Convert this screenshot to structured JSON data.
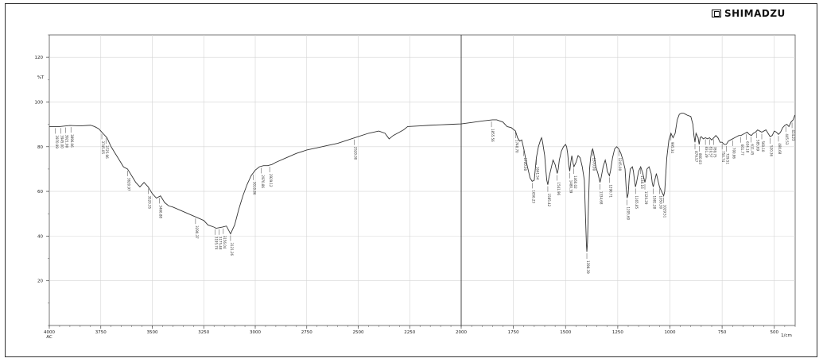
{
  "brand": {
    "name": "SHIMADZU",
    "icon": "shimadzu-logo-icon"
  },
  "chart_data": {
    "type": "line",
    "title": "",
    "ylabel": "%T",
    "xunit": "1/cm",
    "xlim": [
      4000,
      400
    ],
    "ylim": [
      0,
      130
    ],
    "grid": true,
    "xticks": [
      {
        "v": 4000,
        "label": "4000"
      },
      {
        "v": 3750,
        "label": "3750"
      },
      {
        "v": 3500,
        "label": "3500"
      },
      {
        "v": 3250,
        "label": "3250"
      },
      {
        "v": 3000,
        "label": "3000"
      },
      {
        "v": 2750,
        "label": "2750"
      },
      {
        "v": 2500,
        "label": "2500"
      },
      {
        "v": 2250,
        "label": "2250"
      },
      {
        "v": 2000,
        "label": "2000"
      },
      {
        "v": 1750,
        "label": "1750"
      },
      {
        "v": 1500,
        "label": "1500"
      },
      {
        "v": 1250,
        "label": "1250"
      },
      {
        "v": 1000,
        "label": "1000"
      },
      {
        "v": 750,
        "label": "750"
      },
      {
        "v": 500,
        "label": "500"
      }
    ],
    "x_start_sublabel": "AC",
    "yticks": [
      {
        "v": 20,
        "label": "20"
      },
      {
        "v": 40,
        "label": "40"
      },
      {
        "v": 60,
        "label": "60"
      },
      {
        "v": 80,
        "label": "80"
      },
      {
        "v": 100,
        "label": "100"
      },
      {
        "v": 120,
        "label": "120"
      }
    ],
    "series": [
      {
        "color": "#333333",
        "points": [
          [
            4000,
            89
          ],
          [
            3950,
            89
          ],
          [
            3900,
            89.5
          ],
          [
            3850,
            89.3
          ],
          [
            3800,
            89.6
          ],
          [
            3780,
            89
          ],
          [
            3760,
            88
          ],
          [
            3740,
            86
          ],
          [
            3720,
            84
          ],
          [
            3700,
            80
          ],
          [
            3680,
            77
          ],
          [
            3660,
            74
          ],
          [
            3640,
            71
          ],
          [
            3620,
            70
          ],
          [
            3600,
            67
          ],
          [
            3580,
            64
          ],
          [
            3560,
            62
          ],
          [
            3540,
            64
          ],
          [
            3520,
            62
          ],
          [
            3500,
            59
          ],
          [
            3480,
            57
          ],
          [
            3460,
            58
          ],
          [
            3440,
            55
          ],
          [
            3420,
            53.5
          ],
          [
            3400,
            53
          ],
          [
            3350,
            51
          ],
          [
            3300,
            49
          ],
          [
            3250,
            47
          ],
          [
            3230,
            45
          ],
          [
            3200,
            44
          ],
          [
            3190,
            43.5
          ],
          [
            3160,
            44
          ],
          [
            3140,
            44.5
          ],
          [
            3120,
            41
          ],
          [
            3100,
            45
          ],
          [
            3080,
            52
          ],
          [
            3060,
            58
          ],
          [
            3040,
            63
          ],
          [
            3020,
            67
          ],
          [
            3000,
            69.5
          ],
          [
            2980,
            71
          ],
          [
            2960,
            71.5
          ],
          [
            2940,
            71.5
          ],
          [
            2920,
            72
          ],
          [
            2900,
            73
          ],
          [
            2850,
            75
          ],
          [
            2800,
            77
          ],
          [
            2750,
            78.5
          ],
          [
            2700,
            79.5
          ],
          [
            2650,
            80.5
          ],
          [
            2600,
            81.5
          ],
          [
            2550,
            83
          ],
          [
            2500,
            84.5
          ],
          [
            2450,
            86
          ],
          [
            2400,
            87
          ],
          [
            2370,
            86
          ],
          [
            2350,
            83.5
          ],
          [
            2330,
            85
          ],
          [
            2300,
            86.5
          ],
          [
            2280,
            87.5
          ],
          [
            2260,
            89
          ],
          [
            2200,
            89.3
          ],
          [
            2150,
            89.6
          ],
          [
            2100,
            89.8
          ],
          [
            2050,
            90
          ],
          [
            2000,
            90.2
          ],
          [
            1950,
            90.8
          ],
          [
            1900,
            91.5
          ],
          [
            1850,
            92
          ],
          [
            1830,
            92
          ],
          [
            1800,
            91
          ],
          [
            1780,
            89
          ],
          [
            1760,
            88.5
          ],
          [
            1740,
            87
          ],
          [
            1730,
            84
          ],
          [
            1720,
            82.5
          ],
          [
            1710,
            83
          ],
          [
            1700,
            79
          ],
          [
            1690,
            74
          ],
          [
            1680,
            70
          ],
          [
            1670,
            66
          ],
          [
            1660,
            64.5
          ],
          [
            1650,
            65
          ],
          [
            1645,
            70
          ],
          [
            1640,
            75
          ],
          [
            1630,
            80
          ],
          [
            1620,
            83
          ],
          [
            1615,
            84
          ],
          [
            1610,
            82
          ],
          [
            1600,
            76
          ],
          [
            1595,
            70
          ],
          [
            1590,
            65
          ],
          [
            1585,
            63
          ],
          [
            1580,
            66
          ],
          [
            1570,
            70
          ],
          [
            1560,
            74
          ],
          [
            1550,
            72
          ],
          [
            1540,
            68
          ],
          [
            1535,
            70
          ],
          [
            1530,
            74
          ],
          [
            1520,
            78
          ],
          [
            1510,
            80
          ],
          [
            1500,
            81
          ],
          [
            1495,
            80
          ],
          [
            1490,
            77
          ],
          [
            1485,
            72
          ],
          [
            1480,
            69
          ],
          [
            1475,
            73
          ],
          [
            1470,
            76
          ],
          [
            1465,
            73
          ],
          [
            1460,
            71
          ],
          [
            1450,
            73
          ],
          [
            1440,
            76
          ],
          [
            1430,
            75
          ],
          [
            1420,
            71
          ],
          [
            1410,
            65
          ],
          [
            1405,
            50
          ],
          [
            1400,
            36
          ],
          [
            1398,
            33
          ],
          [
            1395,
            37
          ],
          [
            1390,
            55
          ],
          [
            1385,
            70
          ],
          [
            1380,
            75
          ],
          [
            1375,
            78
          ],
          [
            1370,
            79
          ],
          [
            1365,
            77
          ],
          [
            1355,
            71
          ],
          [
            1345,
            68
          ],
          [
            1335,
            64
          ],
          [
            1330,
            66
          ],
          [
            1320,
            71
          ],
          [
            1310,
            74
          ],
          [
            1305,
            72
          ],
          [
            1300,
            69
          ],
          [
            1290,
            67
          ],
          [
            1285,
            69
          ],
          [
            1275,
            75
          ],
          [
            1265,
            79
          ],
          [
            1255,
            80
          ],
          [
            1245,
            79
          ],
          [
            1235,
            77
          ],
          [
            1225,
            74
          ],
          [
            1220,
            72
          ],
          [
            1215,
            70
          ],
          [
            1210,
            62
          ],
          [
            1205,
            57
          ],
          [
            1200,
            59
          ],
          [
            1195,
            66
          ],
          [
            1190,
            70
          ],
          [
            1180,
            71
          ],
          [
            1175,
            69
          ],
          [
            1170,
            65
          ],
          [
            1165,
            62
          ],
          [
            1160,
            64
          ],
          [
            1150,
            69
          ],
          [
            1140,
            71
          ],
          [
            1130,
            68
          ],
          [
            1120,
            64
          ],
          [
            1115,
            66
          ],
          [
            1110,
            70
          ],
          [
            1100,
            71
          ],
          [
            1090,
            68
          ],
          [
            1085,
            64
          ],
          [
            1080,
            62
          ],
          [
            1075,
            64
          ],
          [
            1065,
            68
          ],
          [
            1060,
            66
          ],
          [
            1050,
            62
          ],
          [
            1040,
            60
          ],
          [
            1030,
            58
          ],
          [
            1025,
            60
          ],
          [
            1015,
            75
          ],
          [
            1005,
            83
          ],
          [
            995,
            86
          ],
          [
            985,
            84
          ],
          [
            975,
            86
          ],
          [
            965,
            92
          ],
          [
            955,
            94.5
          ],
          [
            945,
            95
          ],
          [
            935,
            95
          ],
          [
            925,
            94.5
          ],
          [
            915,
            94
          ],
          [
            900,
            93.5
          ],
          [
            890,
            90
          ],
          [
            885,
            85
          ],
          [
            880,
            82
          ],
          [
            875,
            86
          ],
          [
            865,
            84
          ],
          [
            860,
            81
          ],
          [
            855,
            84
          ],
          [
            850,
            84.5
          ],
          [
            840,
            83.5
          ],
          [
            830,
            84
          ],
          [
            820,
            83.5
          ],
          [
            810,
            84
          ],
          [
            800,
            83
          ],
          [
            790,
            84
          ],
          [
            780,
            85
          ],
          [
            770,
            84
          ],
          [
            760,
            82
          ],
          [
            750,
            82
          ],
          [
            740,
            81
          ],
          [
            730,
            81
          ],
          [
            720,
            82.5
          ],
          [
            710,
            83
          ],
          [
            700,
            83.5
          ],
          [
            690,
            84
          ],
          [
            680,
            84.5
          ],
          [
            670,
            85
          ],
          [
            660,
            85
          ],
          [
            650,
            85.5
          ],
          [
            640,
            86
          ],
          [
            630,
            86.5
          ],
          [
            620,
            85.5
          ],
          [
            610,
            85
          ],
          [
            600,
            86
          ],
          [
            590,
            86.5
          ],
          [
            580,
            87.5
          ],
          [
            570,
            87
          ],
          [
            560,
            86.5
          ],
          [
            550,
            87
          ],
          [
            540,
            87.5
          ],
          [
            530,
            86
          ],
          [
            520,
            84.5
          ],
          [
            510,
            85
          ],
          [
            500,
            87
          ],
          [
            490,
            86.5
          ],
          [
            480,
            85.5
          ],
          [
            470,
            86.5
          ],
          [
            460,
            88.5
          ],
          [
            450,
            89.5
          ],
          [
            440,
            90
          ],
          [
            430,
            89
          ],
          [
            420,
            91
          ],
          [
            410,
            92
          ],
          [
            402,
            94
          ],
          [
            400,
            94
          ]
        ]
      }
    ],
    "peaks": [
      {
        "x": 3970,
        "label": "3970.99"
      },
      {
        "x": 3945,
        "label": "3945.00"
      },
      {
        "x": 3920,
        "label": "3921.90"
      },
      {
        "x": 3895,
        "label": "3896.06"
      },
      {
        "x": 3745,
        "label": "3745.05"
      },
      {
        "x": 3725,
        "label": "3725.96"
      },
      {
        "x": 3620,
        "label": "3620.97"
      },
      {
        "x": 3520,
        "label": "3520.35"
      },
      {
        "x": 3465,
        "label": "3466.88"
      },
      {
        "x": 3290,
        "label": "3290.37"
      },
      {
        "x": 3195,
        "label": "3195.74"
      },
      {
        "x": 3175,
        "label": "3175.48"
      },
      {
        "x": 3155,
        "label": "3156.04"
      },
      {
        "x": 3120,
        "label": "3121.26"
      },
      {
        "x": 3010,
        "label": "3010.86"
      },
      {
        "x": 2970,
        "label": "2970.86"
      },
      {
        "x": 2930,
        "label": "2929.12"
      },
      {
        "x": 2520,
        "label": "2520.00"
      },
      {
        "x": 1855,
        "label": "1855.56"
      },
      {
        "x": 1740,
        "label": "1740.70"
      },
      {
        "x": 1700,
        "label": "1700.00"
      },
      {
        "x": 1660,
        "label": "1656.23"
      },
      {
        "x": 1640,
        "label": "1641.54"
      },
      {
        "x": 1585,
        "label": "1585.42"
      },
      {
        "x": 1540,
        "label": "1541.96"
      },
      {
        "x": 1480,
        "label": "1480.39"
      },
      {
        "x": 1460,
        "label": "1460.02"
      },
      {
        "x": 1398,
        "label": "1398.39"
      },
      {
        "x": 1370,
        "label": "1370.00"
      },
      {
        "x": 1335,
        "label": "1334.68"
      },
      {
        "x": 1290,
        "label": "1290.71"
      },
      {
        "x": 1245,
        "label": "1245.00"
      },
      {
        "x": 1205,
        "label": "1205.60"
      },
      {
        "x": 1165,
        "label": "1165.85"
      },
      {
        "x": 1140,
        "label": "1140.16"
      },
      {
        "x": 1120,
        "label": "1120.29"
      },
      {
        "x": 1080,
        "label": "1081.28"
      },
      {
        "x": 1050,
        "label": "1050.30"
      },
      {
        "x": 1030,
        "label": "1029.51"
      },
      {
        "x": 995,
        "label": "995.34"
      },
      {
        "x": 880,
        "label": "879.57"
      },
      {
        "x": 860,
        "label": "860.03"
      },
      {
        "x": 830,
        "label": "831.29"
      },
      {
        "x": 810,
        "label": "810.57"
      },
      {
        "x": 790,
        "label": "789.75"
      },
      {
        "x": 750,
        "label": "750.74"
      },
      {
        "x": 730,
        "label": "729.51"
      },
      {
        "x": 700,
        "label": "700.86"
      },
      {
        "x": 660,
        "label": "661.77"
      },
      {
        "x": 635,
        "label": "634.18"
      },
      {
        "x": 612,
        "label": "611.45"
      },
      {
        "x": 585,
        "label": "585.69"
      },
      {
        "x": 560,
        "label": "560.10"
      },
      {
        "x": 520,
        "label": "520.36"
      },
      {
        "x": 480,
        "label": "480.68"
      },
      {
        "x": 445,
        "label": "445.53"
      },
      {
        "x": 415,
        "label": "414.23"
      }
    ]
  }
}
